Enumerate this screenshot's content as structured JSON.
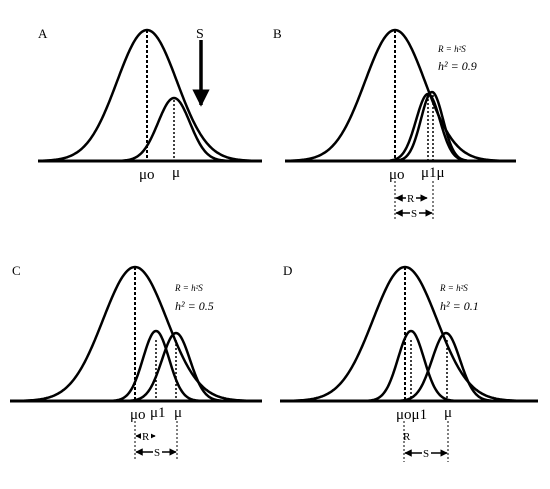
{
  "panels": [
    {
      "id": "A",
      "letter": "A",
      "mu0": "μo",
      "mu": "μ",
      "s_arrow_label": "S"
    },
    {
      "id": "B",
      "letter": "B",
      "mu0": "μo",
      "mu1mu": "μ1μ",
      "r_label": "R",
      "s_label": "S",
      "equation": "R = h²S",
      "h2": "h² = 0.9"
    },
    {
      "id": "C",
      "letter": "C",
      "mu0": "μo",
      "mu1": "μ1",
      "mu": "μ",
      "r_label": "R",
      "s_label": "S",
      "equation": "R = h²S",
      "h2": "h² = 0.5"
    },
    {
      "id": "D",
      "letter": "D",
      "mu0mu1": "μoμ1",
      "mu": "μ",
      "r_label": "R",
      "s_label": "S",
      "equation": "R = h²S",
      "h2": "h² = 0.1"
    }
  ]
}
